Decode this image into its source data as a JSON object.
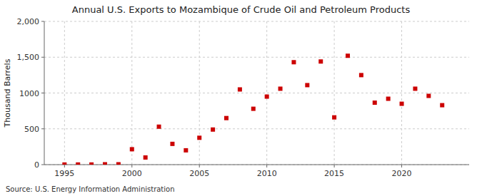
{
  "chart_data": {
    "type": "scatter",
    "title": "Annual U.S. Exports to Mozambique of Crude Oil and Petroleum Products",
    "ylabel": "Thousand Barrels",
    "annotations": [
      "Source: U.S. Energy Information Administration"
    ],
    "x": [
      1995,
      1996,
      1997,
      1998,
      1999,
      2000,
      2001,
      2002,
      2003,
      2004,
      2005,
      2006,
      2007,
      2008,
      2009,
      2010,
      2011,
      2012,
      2013,
      2014,
      2015,
      2016,
      2017,
      2018,
      2019,
      2020,
      2021,
      2022,
      2023
    ],
    "values": [
      2,
      2,
      2,
      5,
      5,
      215,
      100,
      530,
      290,
      200,
      375,
      490,
      650,
      1050,
      780,
      950,
      1060,
      1430,
      1110,
      1440,
      660,
      1520,
      1250,
      865,
      920,
      850,
      1060,
      960,
      830
    ],
    "color": "#cc0000",
    "marker": "square",
    "xlim": [
      1993.5,
      2025
    ],
    "ylim": [
      0,
      2000
    ],
    "xticks": [
      1995,
      2000,
      2005,
      2010,
      2015,
      2020
    ],
    "yticks": [
      0,
      500,
      1000,
      {
        "value": 1500,
        "label": "1,500"
      },
      {
        "value": 2000,
        "label": "2,000"
      }
    ],
    "grid": true
  }
}
